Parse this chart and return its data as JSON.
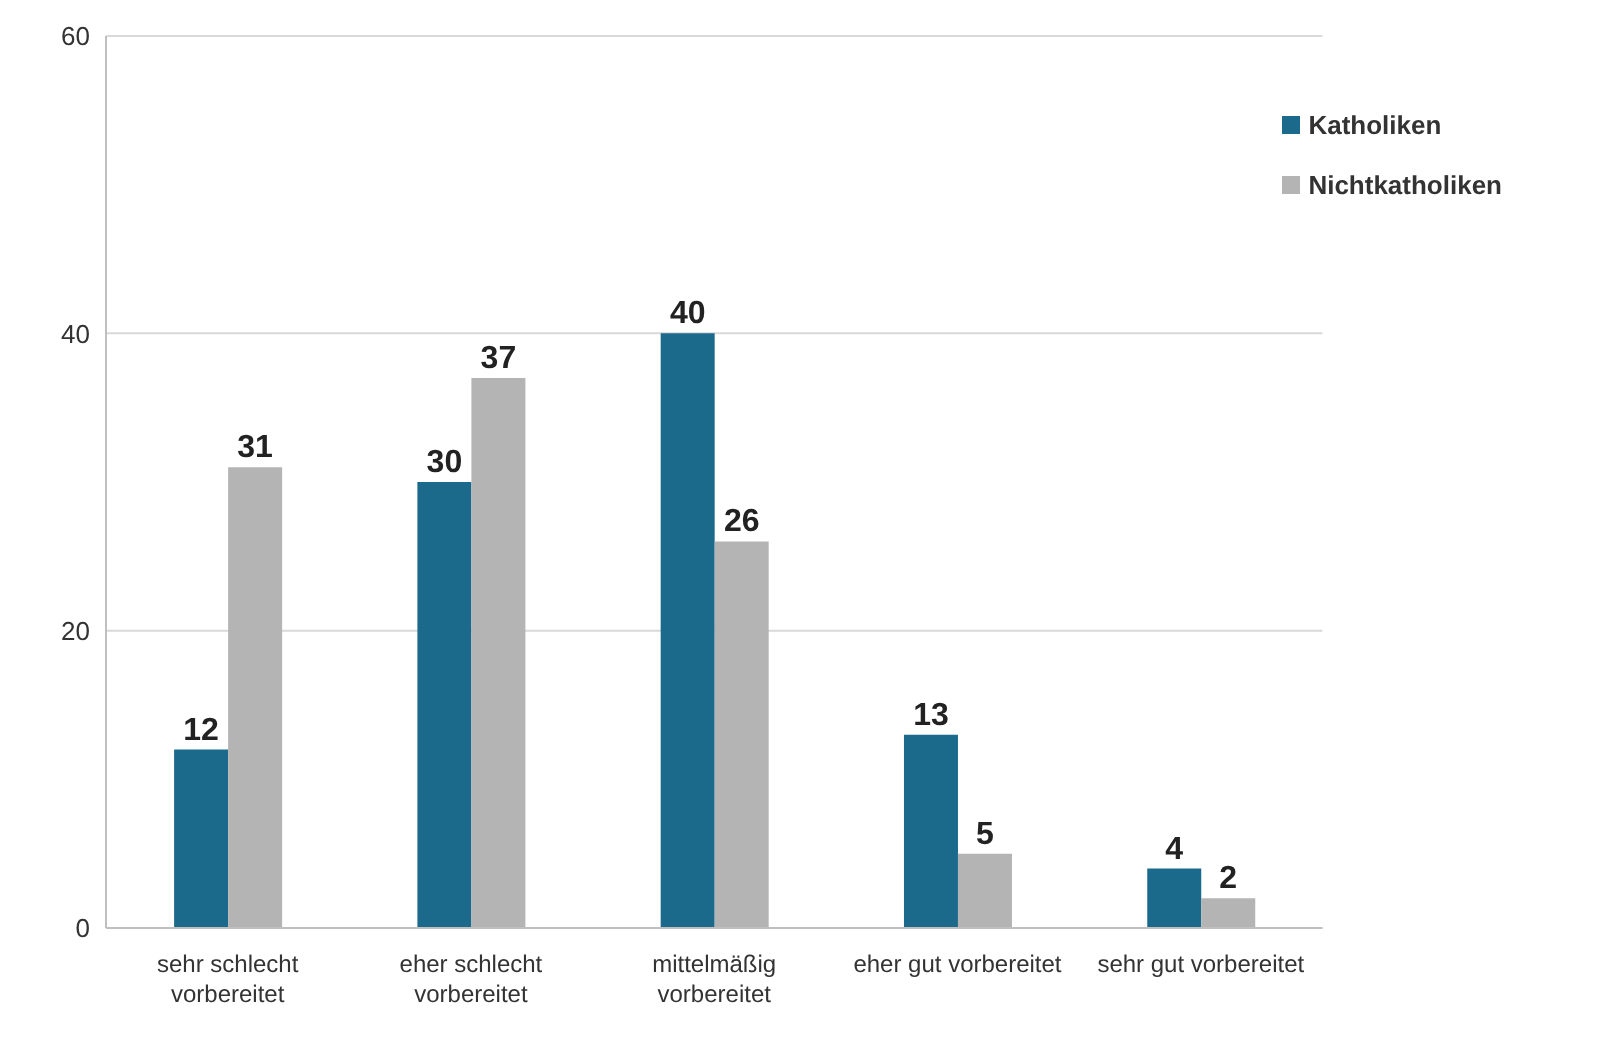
{
  "chart_data": {
    "type": "bar",
    "categories": [
      "sehr schlecht vorbereitet",
      "eher schlecht vorbereitet",
      "mittelmäßig vorbereitet",
      "eher gut vorbereitet",
      "sehr gut vorbereitet"
    ],
    "series": [
      {
        "name": "Katholiken",
        "color": "#1b6a8c",
        "values": [
          12,
          30,
          40,
          13,
          4
        ]
      },
      {
        "name": "Nichtkatholiken",
        "color": "#b4b4b4",
        "values": [
          31,
          37,
          26,
          5,
          2
        ]
      }
    ],
    "ylim": [
      0,
      60
    ],
    "yticks": [
      0,
      20,
      40,
      60
    ],
    "grid": "y",
    "legend": "top right",
    "data_labels": true
  }
}
